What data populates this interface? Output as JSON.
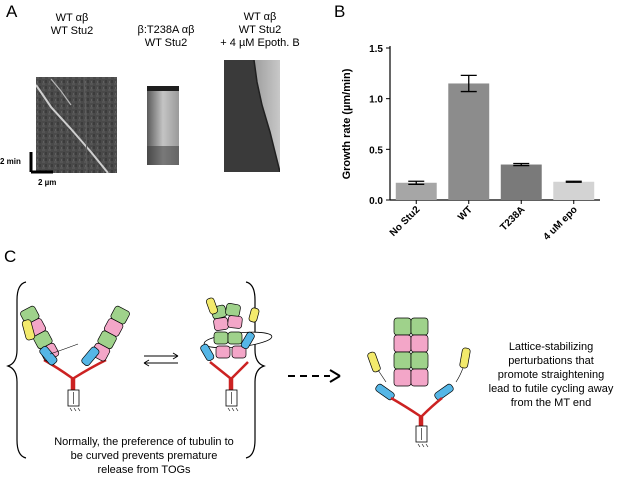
{
  "panel_a": {
    "letter": "A",
    "kymo1": {
      "line1": "WT αβ",
      "line2": "WT Stu2"
    },
    "kymo2": {
      "line1": "β:T238A αβ",
      "line2": "WT Stu2"
    },
    "kymo3": {
      "line1": "WT αβ",
      "line2": "WT Stu2",
      "line3": "+ 4 µM Epoth. B"
    },
    "scale_time": "2 min",
    "scale_length": "2 µm"
  },
  "panel_b": {
    "letter": "B"
  },
  "chart_data": {
    "type": "bar",
    "categories": [
      "No Stu2",
      "WT",
      "T238A",
      "4 uM epo"
    ],
    "values": [
      0.17,
      1.15,
      0.35,
      0.18
    ],
    "errors": [
      0.015,
      0.08,
      0.01,
      0.005
    ],
    "colors": [
      "#a6a6a6",
      "#8c8c8c",
      "#7a7a7a",
      "#d3d3d3"
    ],
    "ylabel": "Growth rate  (µm/min)",
    "xlabel": "",
    "ylim": [
      0,
      1.5
    ],
    "yticks": [
      "0.0",
      "0.5",
      "1.0",
      "1.5"
    ],
    "grid": false
  },
  "panel_c": {
    "letter": "C",
    "caption": "Normally, the preference of tubulin to be curved prevents premature release from TOGs",
    "side_text": "Lattice-stabilizing perturbations that promote straightening lead to futile cycling away from the MT end",
    "colors": {
      "green": "#9fd28b",
      "pink": "#f3a6c8",
      "blue": "#55b6e6",
      "yellow": "#f3ea6c",
      "red": "#cc2222"
    }
  }
}
